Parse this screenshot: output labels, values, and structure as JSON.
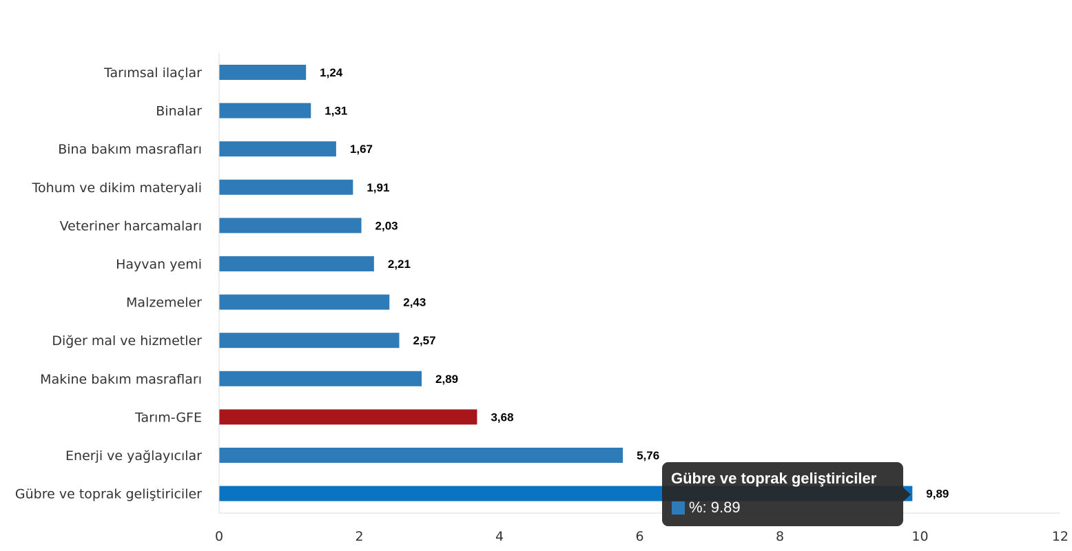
{
  "chart_data": {
    "type": "bar",
    "orientation": "horizontal",
    "categories": [
      "Tarımsal ilaçlar",
      "Binalar",
      "Bina bakım masrafları",
      "Tohum ve dikim materyali",
      "Veteriner harcamaları",
      "Hayvan yemi",
      "Malzemeler",
      "Diğer mal ve hizmetler",
      "Makine bakım masrafları",
      "Tarım-GFE",
      "Enerji  ve yağlayıcılar",
      "Gübre ve toprak geliştiriciler"
    ],
    "values": [
      1.24,
      1.31,
      1.67,
      1.91,
      2.03,
      2.21,
      2.43,
      2.57,
      2.89,
      3.68,
      5.76,
      9.89
    ],
    "data_labels": [
      "1,24",
      "1,31",
      "1,67",
      "1,91",
      "2,03",
      "2,21",
      "2,43",
      "2,57",
      "2,89",
      "3,68",
      "5,76",
      "9,89"
    ],
    "xlim": [
      0,
      12
    ],
    "x_ticks": [
      "0",
      "2",
      "4",
      "6",
      "8",
      "10",
      "12"
    ],
    "grid": false,
    "legend": "none",
    "colors": {
      "default": "#2e7bb8",
      "highlight_category": "Tarım-GFE",
      "highlight": "#a8151b",
      "hovered_category": "Gübre ve toprak geliştiriciler",
      "hovered": "#0a73c2",
      "axis": "#d8d8d8"
    }
  },
  "tooltip": {
    "title": "Gübre ve toprak geliştiriciler",
    "value_text": "%: 9.89",
    "swatch_color": "#2e7bb8"
  }
}
